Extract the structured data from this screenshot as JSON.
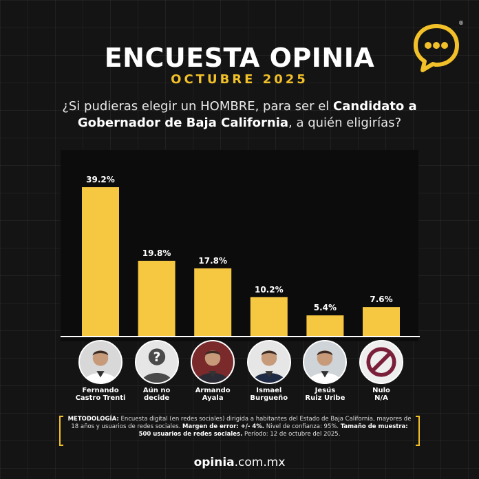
{
  "header": {
    "title": "ENCUESTA OPINIA",
    "subtitle": "OCTUBRE 2025"
  },
  "question": {
    "part1": "¿Si pudieras elegir un HOMBRE, para ser el",
    "bold": "Candidato a Gobernador de Baja California",
    "part2": ", a quién eligirías?"
  },
  "chart_data": {
    "type": "bar",
    "categories": [
      "Fernando Castro Trenti",
      "Aún no decide",
      "Armando Ayala",
      "Ismael Burgueño",
      "Jesús Ruiz Uribe",
      "Nulo N/A"
    ],
    "values": [
      39.2,
      19.8,
      17.8,
      10.2,
      5.4,
      7.6
    ],
    "value_labels": [
      "39.2%",
      "19.8%",
      "17.8%",
      "10.2%",
      "5.4%",
      "7.6%"
    ],
    "title": "",
    "xlabel": "",
    "ylabel": "",
    "ylim": [
      0,
      40
    ],
    "grid": false,
    "bar_color": "#f6c741"
  },
  "candidates": [
    {
      "line1": "Fernando",
      "line2": "Castro Trenti",
      "icon": "person-photo-icon"
    },
    {
      "line1": "Aún no",
      "line2": "decide",
      "icon": "unknown-person-icon"
    },
    {
      "line1": "Armando",
      "line2": "Ayala",
      "icon": "person-photo-icon"
    },
    {
      "line1": "Ismael",
      "line2": "Burgueño",
      "icon": "person-photo-icon"
    },
    {
      "line1": "Jesús",
      "line2": "Ruiz Uribe",
      "icon": "person-photo-icon"
    },
    {
      "line1": "Nulo",
      "line2": "N/A",
      "icon": "prohibited-icon"
    }
  ],
  "methodology": {
    "label1": "METODOLOGÍA:",
    "text1": " Encuesta digital (en redes sociales) dirigida a habitantes del Estado de Baja California, mayores de 18 años y usuarios de redes sociales. ",
    "label2": "Margen de error: +/- 4%.",
    "text2": " Nivel de confianza: 95%. ",
    "label3": "Tamaño de muestra: 500 usuarios de redes sociales.",
    "text3": " Período: 12 de octubre del 2025."
  },
  "footer": {
    "brand": "opinia",
    "domain": ".com.mx"
  },
  "logo": {
    "registered": "®",
    "icon": "speech-bubble-dots-icon",
    "color": "#f2c029"
  },
  "colors": {
    "accent": "#f2c029",
    "background": "#141414"
  }
}
